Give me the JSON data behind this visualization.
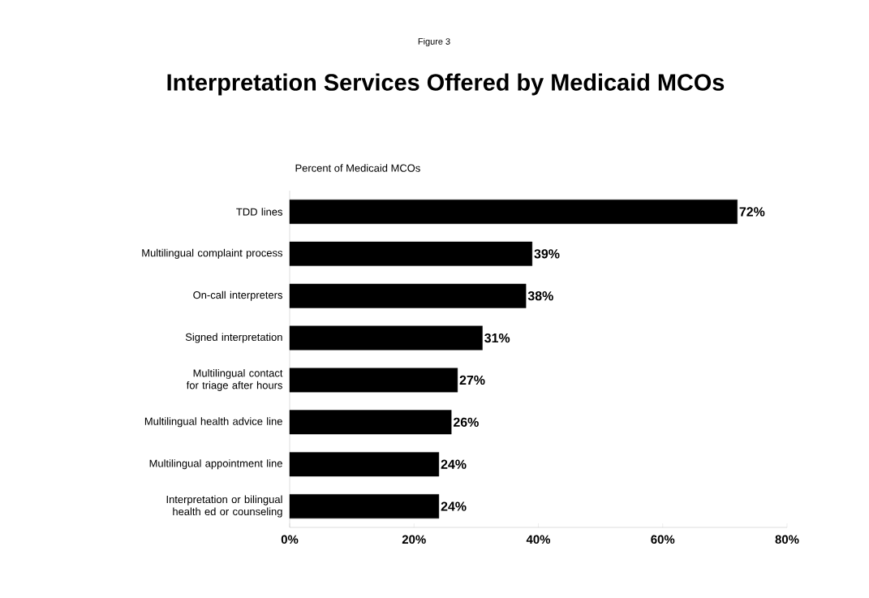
{
  "chart_data": {
    "type": "bar",
    "orientation": "horizontal",
    "title": "Interpretation Services Offered by Medicaid MCOs",
    "subtitle": "Figure 3",
    "xlabel": "Percent of Medicaid MCOs",
    "categories": [
      "TDD lines",
      "Multilingual complaint process",
      "On-call interpreters",
      "Signed interpretation",
      "Multilingual contact for triage after hours",
      "Multilingual health advice line",
      "Multilingual appointment line",
      "Interpretation or bilingual health ed or counseling"
    ],
    "values": [
      72,
      39,
      38,
      31,
      27,
      26,
      24,
      24
    ],
    "color": "#000000",
    "value_labels": [
      "72%",
      "39%",
      "38%",
      "31%",
      "27%",
      "26%",
      "24%",
      "24%"
    ],
    "xlim": [
      0,
      80
    ],
    "xticks": [
      {
        "value": 0,
        "label": "0%"
      },
      {
        "value": 20,
        "label": "20%"
      },
      {
        "value": 40,
        "label": "40%"
      },
      {
        "value": 60,
        "label": "60%"
      },
      {
        "value": 80,
        "label": "80%"
      }
    ],
    "grid": false
  }
}
